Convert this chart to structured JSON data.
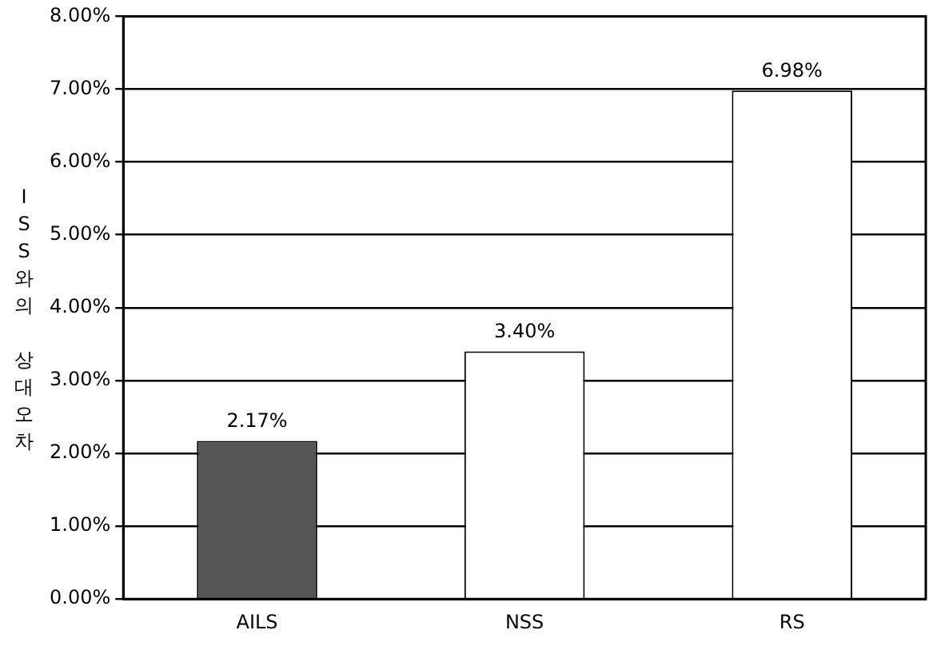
{
  "chart_data": {
    "type": "bar",
    "ylabel": "ISS와의 상대오차",
    "categories": [
      "AILS",
      "NSS",
      "RS"
    ],
    "values": [
      2.17,
      3.4,
      6.98
    ],
    "colors": [
      "#555555",
      "#ffffff",
      "#ffffff"
    ],
    "value_labels": [
      "2.17%",
      "3.40%",
      "6.98%"
    ],
    "ylim": [
      0,
      8
    ],
    "yticks": [
      {
        "value": 0,
        "label": "0.00%"
      },
      {
        "value": 1,
        "label": "1.00%"
      },
      {
        "value": 2,
        "label": "2.00%"
      },
      {
        "value": 3,
        "label": "3.00%"
      },
      {
        "value": 4,
        "label": "4.00%"
      },
      {
        "value": 5,
        "label": "5.00%"
      },
      {
        "value": 6,
        "label": "6.00%"
      },
      {
        "value": 7,
        "label": "7.00%"
      },
      {
        "value": 8,
        "label": "8.00%"
      }
    ],
    "grid": "y",
    "legend": false
  }
}
